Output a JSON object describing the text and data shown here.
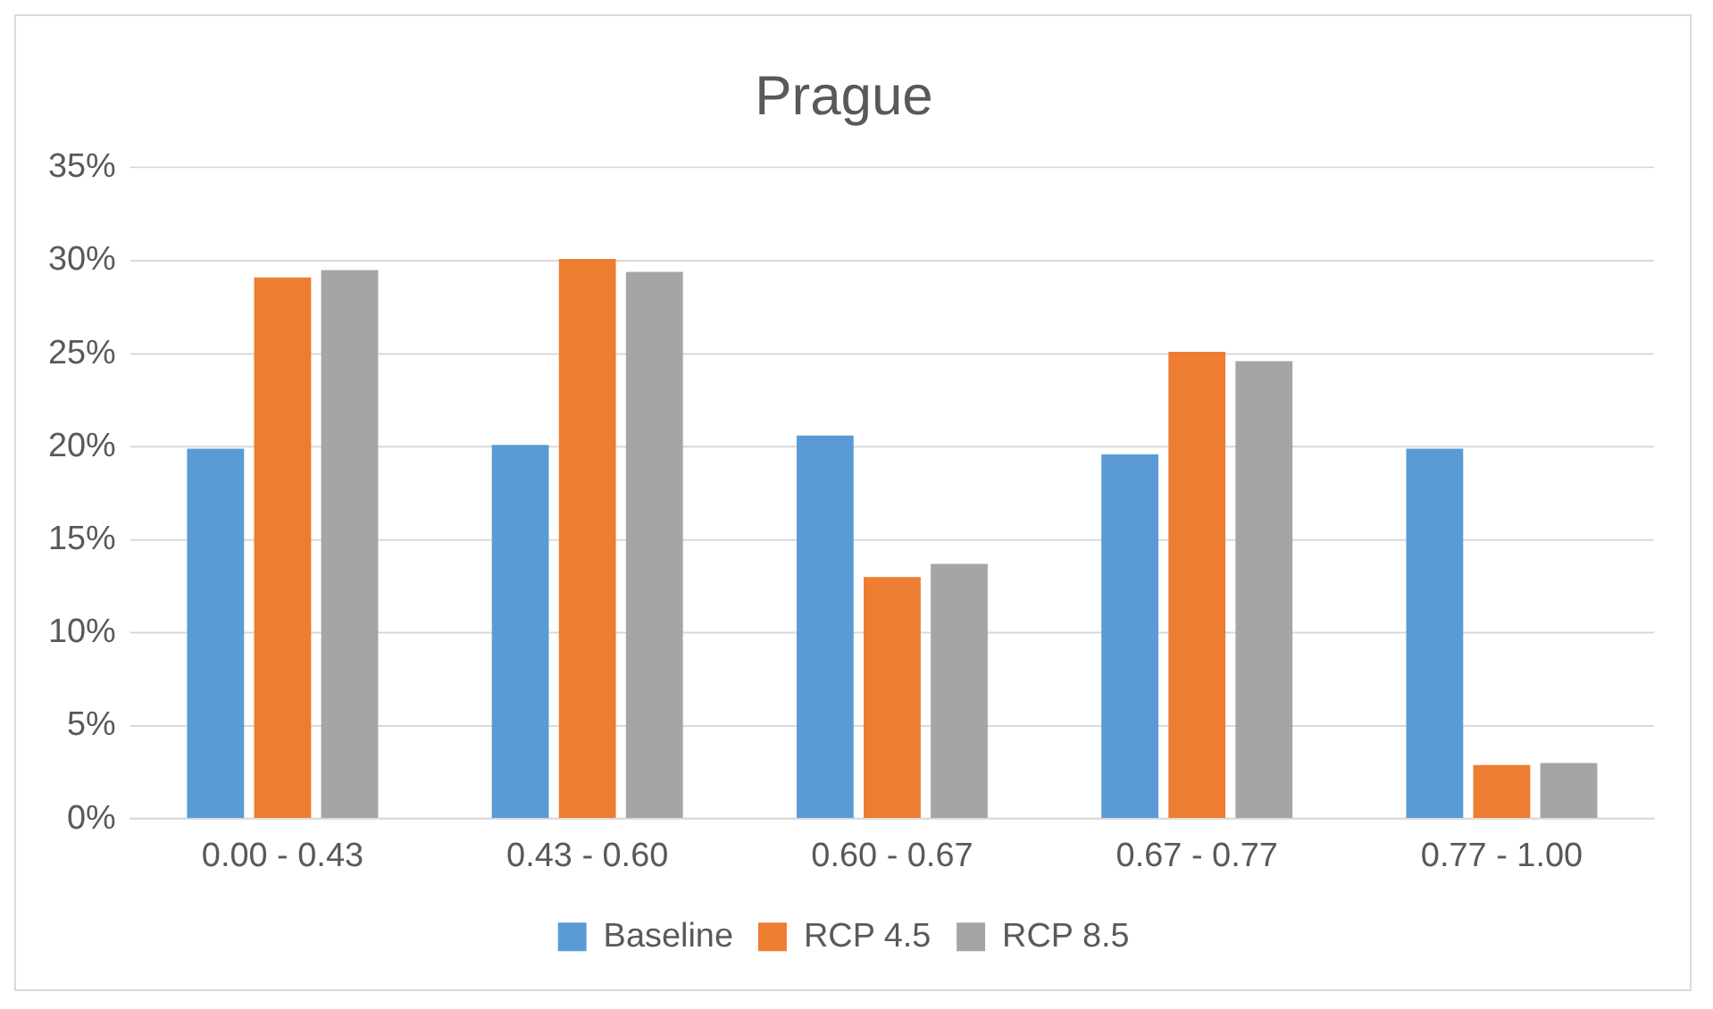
{
  "chart_data": {
    "type": "bar",
    "title": "Prague",
    "categories": [
      "0.00 - 0.43",
      "0.43 - 0.60",
      "0.60 - 0.67",
      "0.67 - 0.77",
      "0.77 - 1.00"
    ],
    "series": [
      {
        "name": "Baseline",
        "color": "#5b9bd5",
        "values": [
          19.9,
          20.1,
          20.6,
          19.6,
          19.9
        ]
      },
      {
        "name": "RCP 4.5",
        "color": "#ed7d31",
        "values": [
          29.1,
          30.1,
          13.0,
          25.1,
          2.9
        ]
      },
      {
        "name": "RCP 8.5",
        "color": "#a5a5a5",
        "values": [
          29.5,
          29.4,
          13.7,
          24.6,
          3.0
        ]
      }
    ],
    "ylim": [
      0,
      35
    ],
    "yticks": [
      {
        "value": 0,
        "label": "0%"
      },
      {
        "value": 5,
        "label": "5%"
      },
      {
        "value": 10,
        "label": "10%"
      },
      {
        "value": 15,
        "label": "15%"
      },
      {
        "value": 20,
        "label": "20%"
      },
      {
        "value": 25,
        "label": "25%"
      },
      {
        "value": 30,
        "label": "30%"
      },
      {
        "value": 35,
        "label": "35%"
      }
    ],
    "grid": "y",
    "legend": "bottom"
  }
}
